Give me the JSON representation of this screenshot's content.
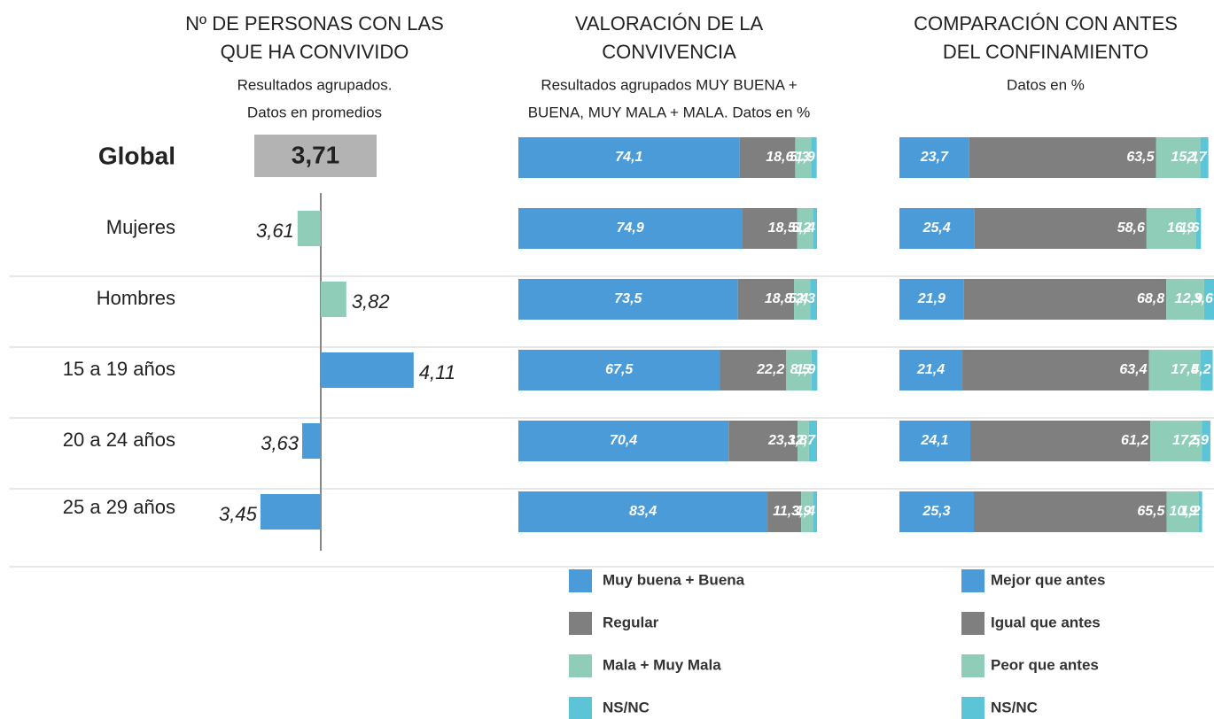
{
  "chart_data": [
    {
      "type": "diverging_bar",
      "title": [
        "Nº DE PERSONAS CON LAS",
        "QUE HA CONVIVIDO"
      ],
      "subtitle": [
        "Resultados agrupados.",
        "Datos en promedios"
      ],
      "categories": [
        "Global",
        "Mujeres",
        "Hombres",
        "15 a 19 años",
        "20 a 24 años",
        "25 a 29 años"
      ],
      "values": [
        3.71,
        3.61,
        3.82,
        4.11,
        3.63,
        3.45
      ],
      "value_labels": [
        "3,71",
        "3,61",
        "3,82",
        "4,11",
        "3,63",
        "3,45"
      ],
      "colors": [
        "#b3b3b3",
        "#8fcdb8",
        "#8fcdb8",
        "#4a9bd8",
        "#4a9bd8",
        "#4a9bd8"
      ]
    },
    {
      "type": "stacked_bar",
      "title": [
        "VALORACIÓN DE LA",
        "CONVIVENCIA"
      ],
      "subtitle": [
        "Resultados agrupados MUY BUENA +",
        "BUENA, MUY MALA + MALA. Datos en %"
      ],
      "xlim": [
        0,
        100
      ],
      "series": [
        {
          "name": "Muy buena + Buena",
          "color": "#4a9bd8",
          "values": [
            74.1,
            74.9,
            73.5,
            67.5,
            70.4,
            83.4
          ],
          "value_labels": [
            "74,1",
            "74,9",
            "73,5",
            "67,5",
            "70,4",
            "83,4"
          ]
        },
        {
          "name": "Regular",
          "color": "#7f7f7f",
          "values": [
            18.6,
            18.5,
            18.8,
            22.2,
            23.1,
            11.3
          ],
          "value_labels": [
            "18,6",
            "18,5",
            "18,8",
            "22,2",
            "23,1",
            "11,3"
          ]
        },
        {
          "name": "Mala + Muy Mala",
          "color": "#8fcdb8",
          "values": [
            5.3,
            5.2,
            5.4,
            8.5,
            3.8,
            3.9
          ],
          "value_labels": [
            "5,3",
            "5,2",
            "5,4",
            "8,5",
            "3,8",
            "3,9"
          ]
        },
        {
          "name": "NS/NC",
          "color": "#5bc4d6",
          "values": [
            1.9,
            1.4,
            2.3,
            1.9,
            2.7,
            1.4
          ],
          "value_labels": [
            "1,9",
            "1,4",
            "2,3",
            "1,9",
            "2,7",
            "1,4"
          ]
        }
      ]
    },
    {
      "type": "stacked_bar",
      "title": [
        "COMPARACIÓN CON ANTES",
        "DEL CONFINAMIENTO"
      ],
      "subtitle": [
        "Datos en %"
      ],
      "xlim": [
        0,
        100
      ],
      "series": [
        {
          "name": "Mejor que antes",
          "color": "#4a9bd8",
          "values": [
            23.7,
            25.4,
            21.9,
            21.4,
            24.1,
            25.3
          ],
          "value_labels": [
            "23,7",
            "25,4",
            "21,9",
            "21,4",
            "24,1",
            "25,3"
          ]
        },
        {
          "name": "Igual que antes",
          "color": "#7f7f7f",
          "values": [
            63.5,
            58.6,
            68.8,
            63.4,
            61.2,
            65.5
          ],
          "value_labels": [
            "63,5",
            "58,6",
            "68,8",
            "63,4",
            "61,2",
            "65,5"
          ]
        },
        {
          "name": "Peor que antes",
          "color": "#8fcdb8",
          "values": [
            15.1,
            16.9,
            12.9,
            17.5,
            17.5,
            10.9
          ],
          "value_labels": [
            "15,1",
            "16,9",
            "12,9",
            "17,5",
            "17,5",
            "10,9"
          ]
        },
        {
          "name": "NS/NC",
          "color": "#5bc4d6",
          "values": [
            2.7,
            1.6,
            3.6,
            4.2,
            2.9,
            1.2
          ],
          "value_labels": [
            "2,7",
            "1,6",
            "3,6",
            "4,2",
            "2,9",
            "1,2"
          ]
        }
      ]
    }
  ]
}
